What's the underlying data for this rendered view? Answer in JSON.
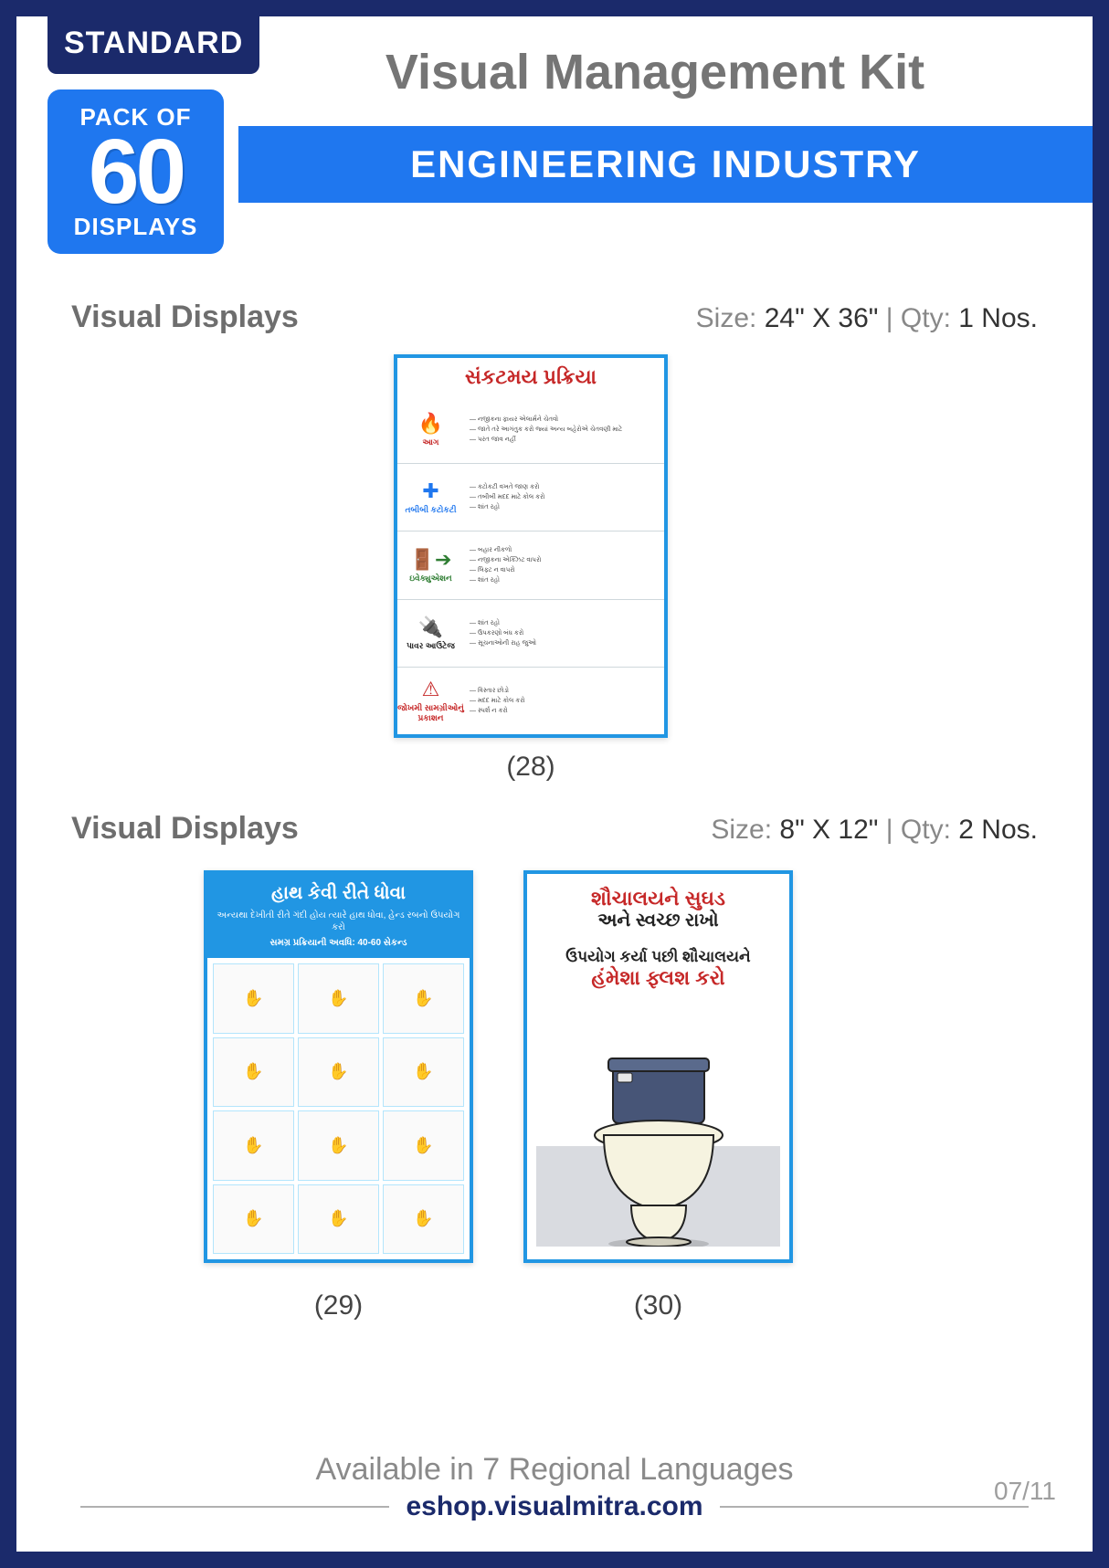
{
  "brand_colors": {
    "border": "#1b2a6b",
    "accent": "#1f77ef",
    "title_gray": "#757575",
    "text_gray": "#6e6e6e",
    "red": "#c62828"
  },
  "header": {
    "standard_label": "STANDARD",
    "pack_of_label": "PACK OF",
    "pack_count": "60",
    "displays_label": "DISPLAYS",
    "main_title": "Visual Management Kit",
    "industry": "ENGINEERING INDUSTRY"
  },
  "section1": {
    "heading": "Visual Displays",
    "size_label": "Size:",
    "size_value": "24\" X 36\"",
    "qty_label": "Qty:",
    "qty_value": "1 Nos."
  },
  "section2": {
    "heading": "Visual Displays",
    "size_label": "Size:",
    "size_value": "8\" X 12\"",
    "qty_label": "Qty:",
    "qty_value": "2 Nos."
  },
  "poster28": {
    "caption": "(28)",
    "title": "સંકટમય પ્રક્રિયા",
    "title_color": "#c62828",
    "rows": [
      {
        "icon": "🔥",
        "label": "આગ",
        "label_color": "#c62828",
        "lines": [
          "નજીકના ફાયર એલાર્મને ચેતવો",
          "જાતે તરે આગંતુક કરો જ્યાં અન્ય બહેરોએ ચેતવણી માટે",
          "પરત જાવ નહીં"
        ]
      },
      {
        "icon": "✚",
        "label": "તબીબી કટોકટી",
        "label_color": "#1f77ef",
        "lines": [
          "કટોકટી વખતે જાણ કરો",
          "તબીબી મદદ માટે કોલ કરો",
          "શાંત રહો"
        ]
      },
      {
        "icon": "🚪➔",
        "label": "ઇવેક્યુએશન",
        "label_color": "#2e7d32",
        "lines": [
          "બહાર નીકળો",
          "નજીકના એક્ઝિટ વાપરો",
          "લિફ્ટ ન વાપરો",
          "શાંત રહો"
        ]
      },
      {
        "icon": "🔌",
        "label": "પાવર આઉટેજ",
        "label_color": "#222222",
        "lines": [
          "શાંત રહો",
          "ઉપકરણો બંધ કરો",
          "સૂચનાઓની રાહ જુઓ"
        ]
      },
      {
        "icon": "⚠",
        "label": "જોખમી સામગ્રીઓનું પ્રકાશન",
        "label_color": "#c62828",
        "lines": [
          "વિસ્તાર છોડો",
          "મદદ માટે કોલ કરો",
          "સ્પર્શ ન કરો"
        ]
      }
    ]
  },
  "poster29": {
    "caption": "(29)",
    "title": "હાથ કેવી રીતે ધોવા",
    "sub1": "અન્યથા દેખીતી રીતે ગંદી હોય ત્યારે હાથ ધોવા, હેન્ડ રબનો ઉપયોગ કરો",
    "sub2": "સમગ્ર પ્રક્રિયાની અવધિ: 40-60 સેકન્ડ",
    "steps_count": 12
  },
  "poster30": {
    "caption": "(30)",
    "title_red": "શૌચાલયને સુઘડ",
    "title_black": "અને સ્વચ્છ રાખો",
    "line1": "ઉપયોગ કર્યા પછી શૌચાલયને",
    "line2": "હંમેશા ફ્લશ કરો",
    "toilet_tank_color": "#475577",
    "toilet_bowl_color": "#f6f3e0"
  },
  "footer": {
    "languages": "Available in 7 Regional Languages",
    "url": "eshop.visualmitra.com",
    "page": "07/11"
  }
}
